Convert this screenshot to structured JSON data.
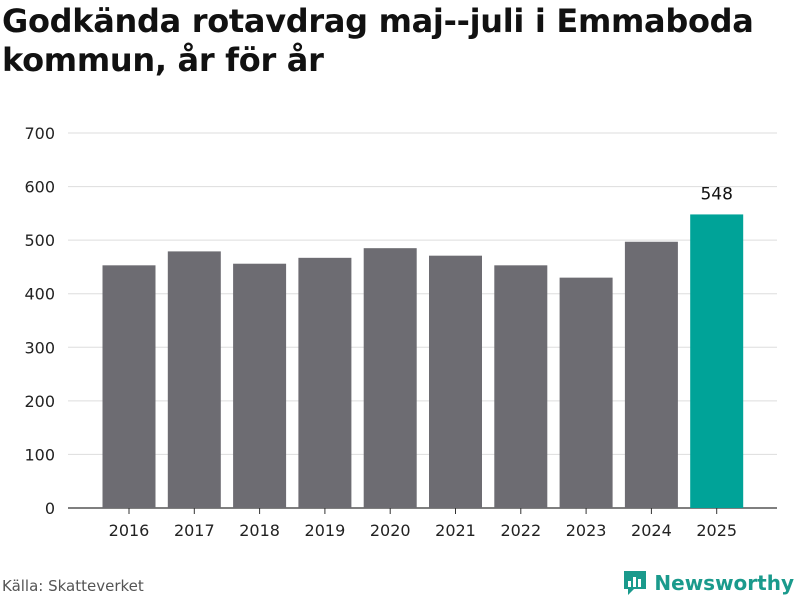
{
  "title": "Godkända rotavdrag maj--juli i Emmaboda kommun, år för år",
  "source": "Källa: Skatteverket",
  "brand": {
    "name": "Newsworthy",
    "icon": "newsworthy-logo-icon"
  },
  "colors": {
    "bar": "#6d6c72",
    "highlight": "#00a398",
    "grid": "#dddddd",
    "axis": "#333333"
  },
  "chart_data": {
    "type": "bar",
    "categories": [
      "2016",
      "2017",
      "2018",
      "2019",
      "2020",
      "2021",
      "2022",
      "2023",
      "2024",
      "2025"
    ],
    "values": [
      453,
      479,
      456,
      467,
      485,
      471,
      453,
      430,
      497,
      548
    ],
    "highlight_index": 9,
    "data_labels": [
      {
        "index": 9,
        "text": "548"
      }
    ],
    "ylim": [
      0,
      700
    ],
    "yticks": [
      0,
      100,
      200,
      300,
      400,
      500,
      600,
      700
    ],
    "xlabel": "",
    "ylabel": "",
    "grid": true,
    "legend": "none"
  }
}
